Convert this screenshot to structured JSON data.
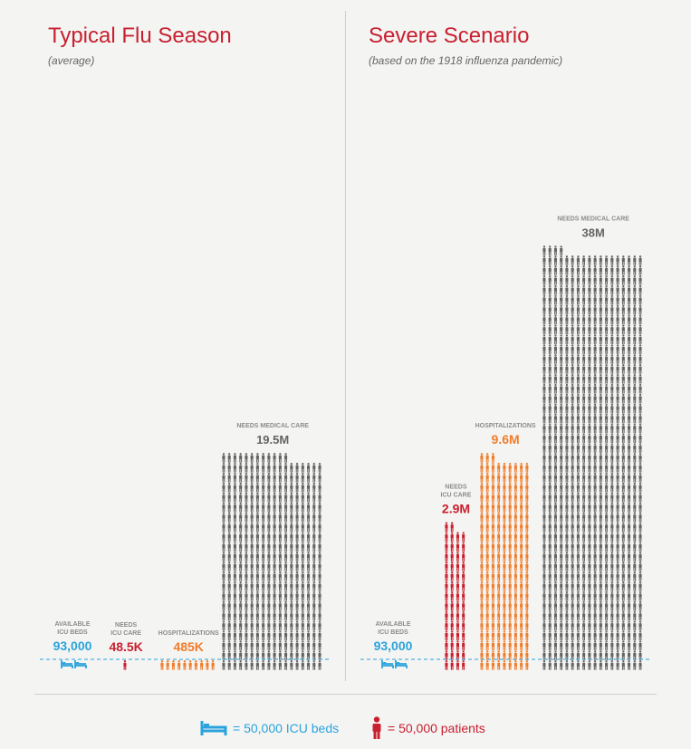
{
  "colors": {
    "beds": "#2aa3dc",
    "icu": "#c8202f",
    "hospital": "#f07d2b",
    "medical": "#646464",
    "title": "#c8202f"
  },
  "legend": {
    "beds_text": "= 50,000 ICU beds",
    "patients_text": "= 50,000 patients",
    "bed_icon": "bed-icon",
    "patient_icon": "person-icon"
  },
  "chart_data": [
    {
      "type": "bar",
      "title": "Typical Flu Season",
      "subtitle": "(average)",
      "unit_per_icon": 50000,
      "categories": [
        "AVAILABLE ICU BEDS",
        "NEEDS ICU CARE",
        "HOSPITALIZATIONS",
        "NEEDS MEDICAL CARE"
      ],
      "values": [
        93000,
        48500,
        485000,
        19500000
      ],
      "value_labels": [
        "93,000",
        "48.5K",
        "485K",
        "19.5M"
      ],
      "category_labels": [
        [
          "AVAILABLE",
          "ICU BEDS"
        ],
        [
          "NEEDS",
          "ICU CARE"
        ],
        [
          "HOSPITALIZATIONS"
        ],
        [
          "NEEDS MEDICAL CARE"
        ]
      ],
      "series_colors": [
        "#2aa3dc",
        "#c8202f",
        "#f07d2b",
        "#646464"
      ],
      "reference_line": "ICU bed capacity (dashed)"
    },
    {
      "type": "bar",
      "title": "Severe Scenario",
      "subtitle": "(based on the 1918 influenza pandemic)",
      "unit_per_icon": 50000,
      "categories": [
        "AVAILABLE ICU BEDS",
        "NEEDS ICU CARE",
        "HOSPITALIZATIONS",
        "NEEDS MEDICAL CARE"
      ],
      "values": [
        93000,
        2900000,
        9600000,
        38000000
      ],
      "value_labels": [
        "93,000",
        "2.9M",
        "9.6M",
        "38M"
      ],
      "category_labels": [
        [
          "AVAILABLE",
          "ICU BEDS"
        ],
        [
          "NEEDS",
          "ICU CARE"
        ],
        [
          "HOSPITALIZATIONS"
        ],
        [
          "NEEDS MEDICAL CARE"
        ]
      ],
      "series_colors": [
        "#2aa3dc",
        "#c8202f",
        "#f07d2b",
        "#646464"
      ],
      "reference_line": "ICU bed capacity (dashed)"
    }
  ]
}
